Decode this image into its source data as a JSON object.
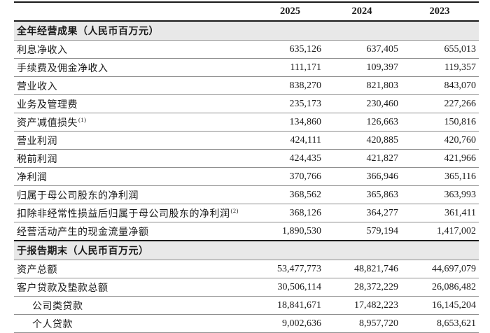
{
  "table": {
    "columns": [
      "2025",
      "2024",
      "2023"
    ],
    "colors": {
      "thick_line": "#1a1a1a",
      "thin_line": "#8f8f8f",
      "section_background": "#e8e8e8",
      "text": "#1a1a1a"
    },
    "sections": [
      {
        "header": "全年经营成果（人民币百万元）",
        "rows": [
          {
            "label": "利息净收入",
            "values": [
              "635,126",
              "637,405",
              "655,013"
            ]
          },
          {
            "label": "手续费及佣金净收入",
            "values": [
              "111,171",
              "109,397",
              "119,357"
            ]
          },
          {
            "label": "营业收入",
            "values": [
              "838,270",
              "821,803",
              "843,070"
            ]
          },
          {
            "label": "业务及管理费",
            "values": [
              "235,173",
              "230,460",
              "227,266"
            ]
          },
          {
            "label": "资产减值损失",
            "sup": "(1)",
            "values": [
              "134,860",
              "126,663",
              "150,816"
            ]
          },
          {
            "label": "营业利润",
            "values": [
              "424,111",
              "420,885",
              "420,760"
            ]
          },
          {
            "label": "税前利润",
            "values": [
              "424,435",
              "421,827",
              "421,966"
            ]
          },
          {
            "label": "净利润",
            "values": [
              "370,766",
              "366,946",
              "365,116"
            ]
          },
          {
            "label": "归属于母公司股东的净利润",
            "values": [
              "368,562",
              "365,863",
              "363,993"
            ]
          },
          {
            "label": "扣除非经常性损益后归属于母公司股东的净利润",
            "sup": "(2)",
            "values": [
              "368,126",
              "364,277",
              "361,411"
            ]
          },
          {
            "label": "经营活动产生的现金流量净额",
            "values": [
              "1,890,530",
              "579,194",
              "1,417,002"
            ]
          }
        ]
      },
      {
        "header": "于报告期末（人民币百万元）",
        "rows": [
          {
            "label": "资产总额",
            "values": [
              "53,477,773",
              "48,821,746",
              "44,697,079"
            ]
          },
          {
            "label": "客户贷款及垫款总额",
            "values": [
              "30,506,114",
              "28,372,229",
              "26,086,482"
            ]
          },
          {
            "label": "公司类贷款",
            "indent": true,
            "values": [
              "18,841,671",
              "17,482,223",
              "16,145,204"
            ]
          },
          {
            "label": "个人贷款",
            "indent": true,
            "values": [
              "9,002,636",
              "8,957,720",
              "8,653,621"
            ]
          }
        ]
      }
    ]
  }
}
